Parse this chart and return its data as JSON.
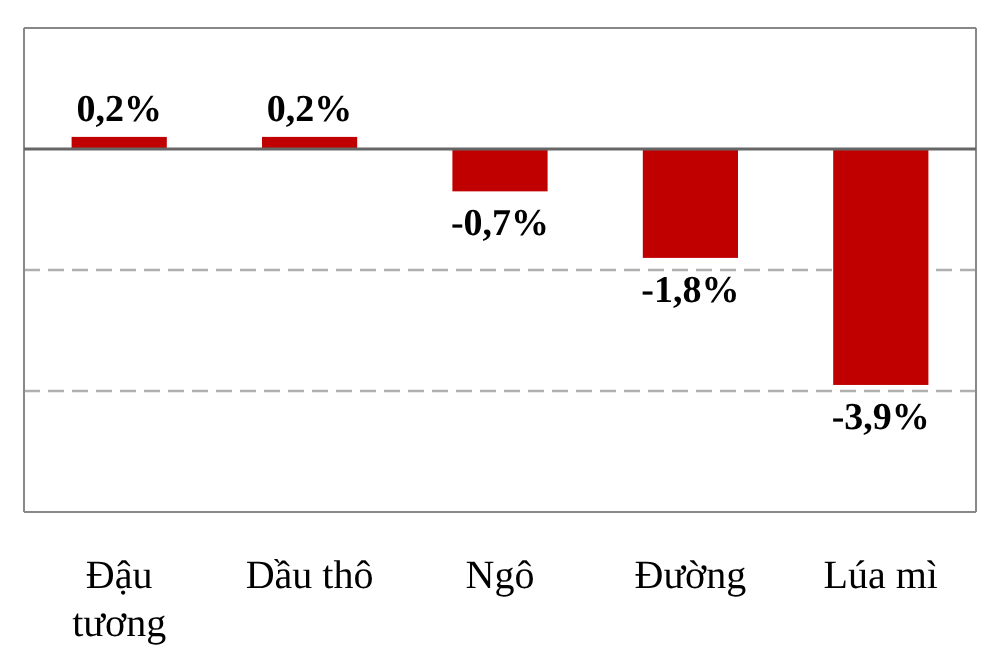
{
  "chart_data": {
    "type": "bar",
    "categories": [
      "Đậu tương",
      "Dầu thô",
      "Ngô",
      "Đường",
      "Lúa mì"
    ],
    "values": [
      0.2,
      0.2,
      -0.7,
      -1.8,
      -3.9
    ],
    "value_labels": [
      "0,2%",
      "0,2%",
      "-0,7%",
      "-1,8%",
      "-3,9%"
    ],
    "color": "#c00000",
    "ylim": [
      -6,
      2
    ],
    "ref_lines": [
      {
        "axis": "y",
        "value": -2,
        "color": "#b0b0b0",
        "line_style": "dashed"
      },
      {
        "axis": "y",
        "value": -4,
        "color": "#b0b0b0",
        "line_style": "dashed"
      }
    ],
    "tick_labels": "x"
  }
}
